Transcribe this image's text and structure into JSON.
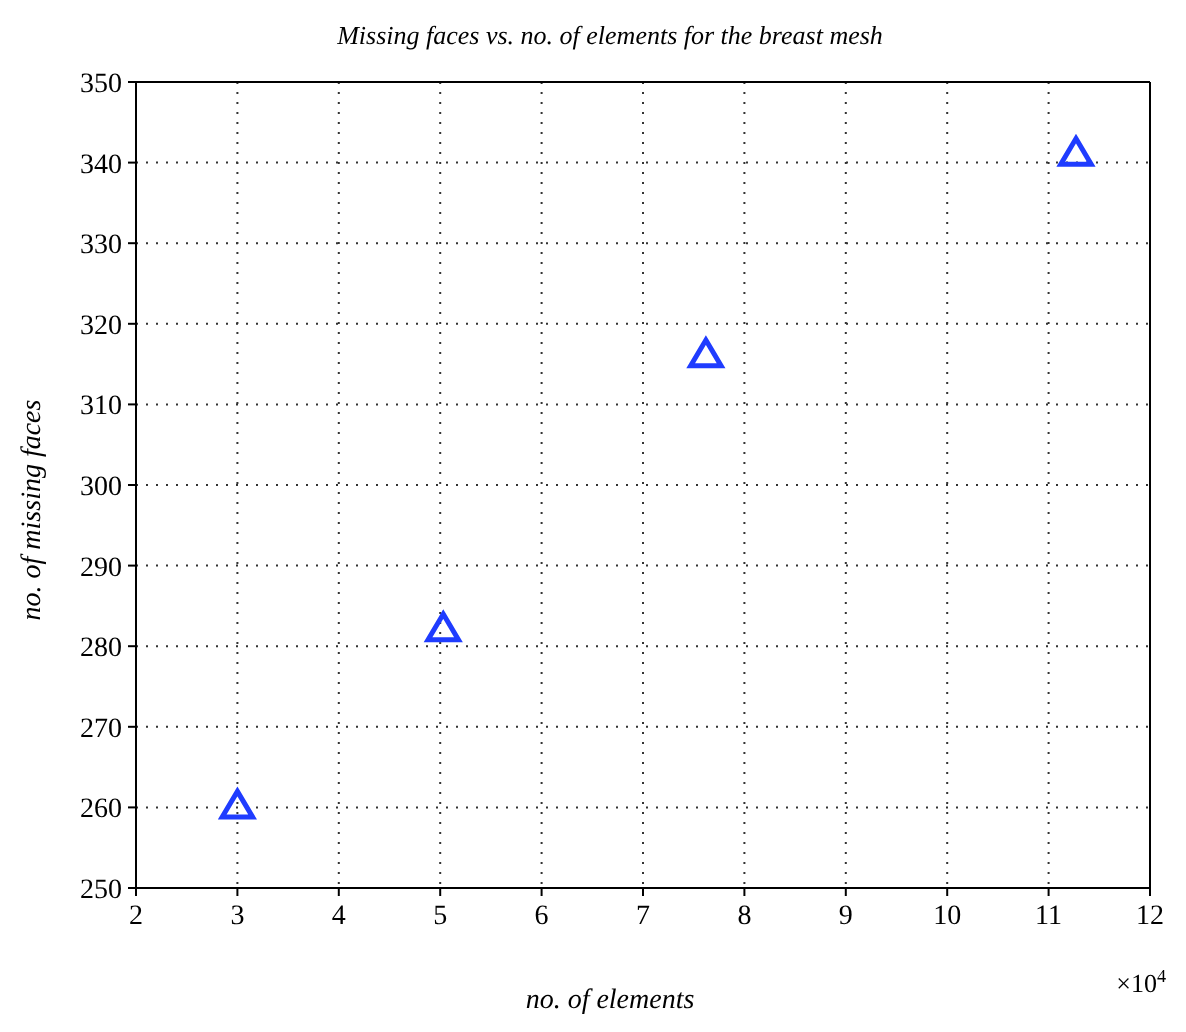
{
  "chart_data": {
    "type": "scatter",
    "title": "Missing faces vs. no. of elements for the breast mesh",
    "xlabel": "no. of elements",
    "ylabel": "no. of missing faces",
    "x": [
      3.0,
      5.03,
      7.62,
      11.27
    ],
    "series": [
      {
        "color": "#1f3cff",
        "values": [
          260,
          282,
          316,
          341
        ]
      }
    ],
    "marker": "triangle",
    "grid": true,
    "xlim": [
      2,
      12
    ],
    "xticks": [
      2,
      3,
      4,
      5,
      6,
      7,
      8,
      9,
      10,
      11,
      12
    ],
    "ylim": [
      250,
      350
    ],
    "yticks": [
      250,
      260,
      270,
      280,
      290,
      300,
      310,
      320,
      330,
      340,
      350
    ],
    "annotations": [
      "×10$^{4}$"
    ]
  }
}
